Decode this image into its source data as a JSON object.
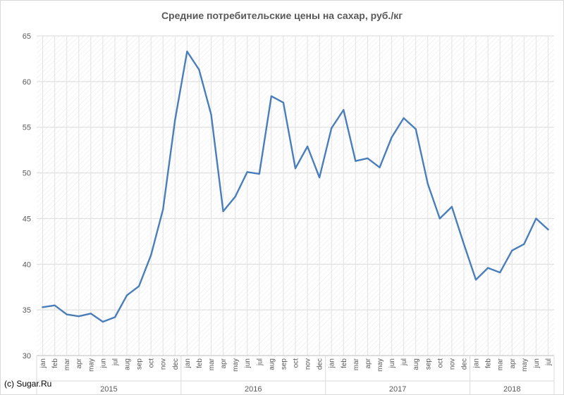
{
  "chart_data": {
    "type": "line",
    "title": "Средние потребительские цены на сахар, руб./кг",
    "xlabel": "",
    "ylabel": "",
    "ylim": [
      30,
      65
    ],
    "yticks": [
      30,
      35,
      40,
      45,
      50,
      55,
      60,
      65
    ],
    "grid": true,
    "legend": "none",
    "years": [
      "2015",
      "2016",
      "2017",
      "2018"
    ],
    "categories": [
      "jan",
      "feb",
      "mar",
      "apr",
      "may",
      "jun",
      "jul",
      "aug",
      "sep",
      "oct",
      "nov",
      "dec",
      "jan",
      "feb",
      "mar",
      "apr",
      "may",
      "jun",
      "jul",
      "aug",
      "sep",
      "oct",
      "nov",
      "dec",
      "jan",
      "feb",
      "mar",
      "apr",
      "may",
      "jun",
      "jul",
      "aug",
      "sep",
      "oct",
      "nov",
      "dec",
      "jan",
      "feb",
      "mar",
      "apr",
      "may",
      "jun",
      "jul"
    ],
    "year_of_category": [
      0,
      0,
      0,
      0,
      0,
      0,
      0,
      0,
      0,
      0,
      0,
      0,
      1,
      1,
      1,
      1,
      1,
      1,
      1,
      1,
      1,
      1,
      1,
      1,
      2,
      2,
      2,
      2,
      2,
      2,
      2,
      2,
      2,
      2,
      2,
      2,
      3,
      3,
      3,
      3,
      3,
      3,
      3
    ],
    "series": [
      {
        "color": "#4a7ebb",
        "values": [
          35.3,
          35.5,
          34.5,
          34.3,
          34.6,
          33.7,
          34.2,
          36.6,
          37.6,
          41.0,
          46.0,
          55.8,
          63.3,
          61.3,
          56.4,
          45.8,
          47.4,
          50.1,
          49.9,
          58.4,
          57.7,
          50.5,
          52.9,
          49.5,
          54.9,
          56.9,
          51.3,
          51.6,
          50.6,
          53.9,
          56.0,
          54.8,
          48.8,
          45.0,
          46.3,
          42.2,
          38.3,
          39.6,
          39.1,
          41.5,
          42.2,
          45.0,
          43.8
        ]
      }
    ]
  },
  "copyright": "(c) Sugar.Ru"
}
